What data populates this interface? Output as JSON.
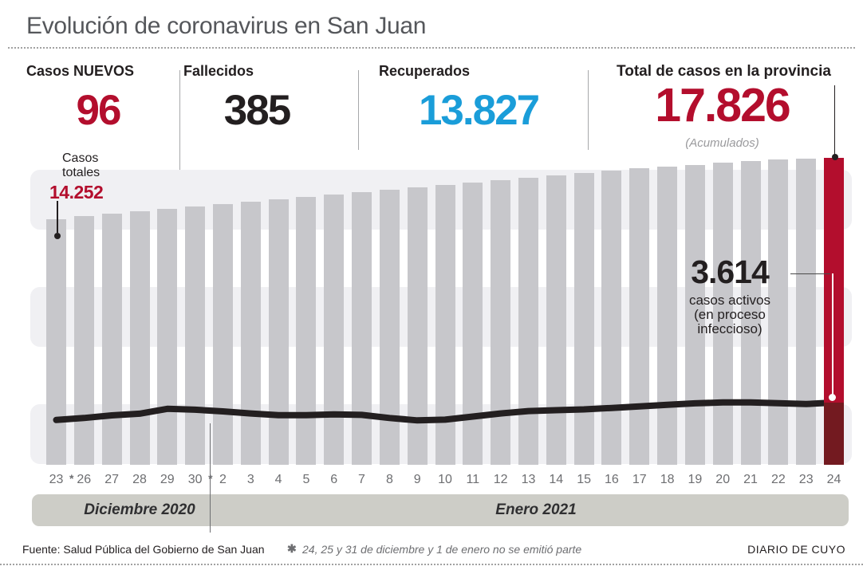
{
  "title": "Evolución de coronavirus en San Juan",
  "stats": [
    {
      "label": "Casos NUEVOS",
      "value": "96"
    },
    {
      "label": "Fallecidos",
      "value": "385"
    },
    {
      "label": "Recuperados",
      "value": "13.827"
    },
    {
      "label": "Total de casos en la provincia",
      "value": "17.826",
      "note": "(Acumulados)"
    }
  ],
  "annotations": {
    "casos_totales": {
      "label": "Casos\ntotales",
      "value": "14.252"
    },
    "activos": {
      "value": "3.614",
      "label": "casos activos\n(en proceso\ninfeccioso)"
    }
  },
  "chart_data": {
    "type": "bar",
    "title": "Evolución de coronavirus en San Juan",
    "categories": [
      "23",
      "26",
      "27",
      "28",
      "29",
      "30",
      "2",
      "3",
      "4",
      "5",
      "6",
      "7",
      "8",
      "9",
      "10",
      "11",
      "12",
      "13",
      "14",
      "15",
      "16",
      "17",
      "18",
      "19",
      "20",
      "21",
      "22",
      "23",
      "24"
    ],
    "category_asterisk_after": [
      0,
      5
    ],
    "asterisk_glyph": "*",
    "series": [
      {
        "name": "Casos totales (acumulados)",
        "type": "bar",
        "values": [
          14252,
          14440,
          14580,
          14720,
          14860,
          15000,
          15140,
          15280,
          15420,
          15560,
          15700,
          15830,
          15970,
          16110,
          16250,
          16390,
          16530,
          16670,
          16810,
          16950,
          17080,
          17220,
          17320,
          17410,
          17550,
          17640,
          17730,
          17780,
          17826
        ]
      },
      {
        "name": "Casos activos (en proceso infeccioso)",
        "type": "line",
        "values": [
          2600,
          2720,
          2870,
          2970,
          3250,
          3200,
          3100,
          2980,
          2880,
          2880,
          2930,
          2900,
          2720,
          2580,
          2620,
          2800,
          2980,
          3120,
          3170,
          3220,
          3300,
          3390,
          3480,
          3570,
          3620,
          3620,
          3580,
          3530,
          3614
        ]
      }
    ],
    "ylim": [
      0,
      17826
    ],
    "grid": "horizontal-stripes",
    "legend": "none",
    "highlight_last_bar": true,
    "xgroups": [
      {
        "label": "Diciembre 2020",
        "from": 0,
        "to": 5
      },
      {
        "label": "Enero 2021",
        "from": 6,
        "to": 28
      }
    ],
    "annotated_points": {
      "first_bar_total": "14.252",
      "last_bar_total": "17.826",
      "last_active": "3.614"
    }
  },
  "footer": {
    "source": "Fuente: Salud Pública del Gobierno de San Juan",
    "note_star": "✱",
    "note": "24, 25 y 31 de diciembre y 1 de enero no se emitió parte",
    "brand": "DIARIO DE CUYO"
  },
  "colors": {
    "red": "#b30e2d",
    "dark_red": "#731a20",
    "blue": "#1a9dd9",
    "bar_gray": "#c7c7cb",
    "stripe_gray": "#f0f0f3",
    "band_gray": "#cdcdc7",
    "ink": "#231f20",
    "muted_gray": "#6d6e71",
    "title_gray": "#55575b",
    "rule_gray": "#a1a1a1"
  }
}
